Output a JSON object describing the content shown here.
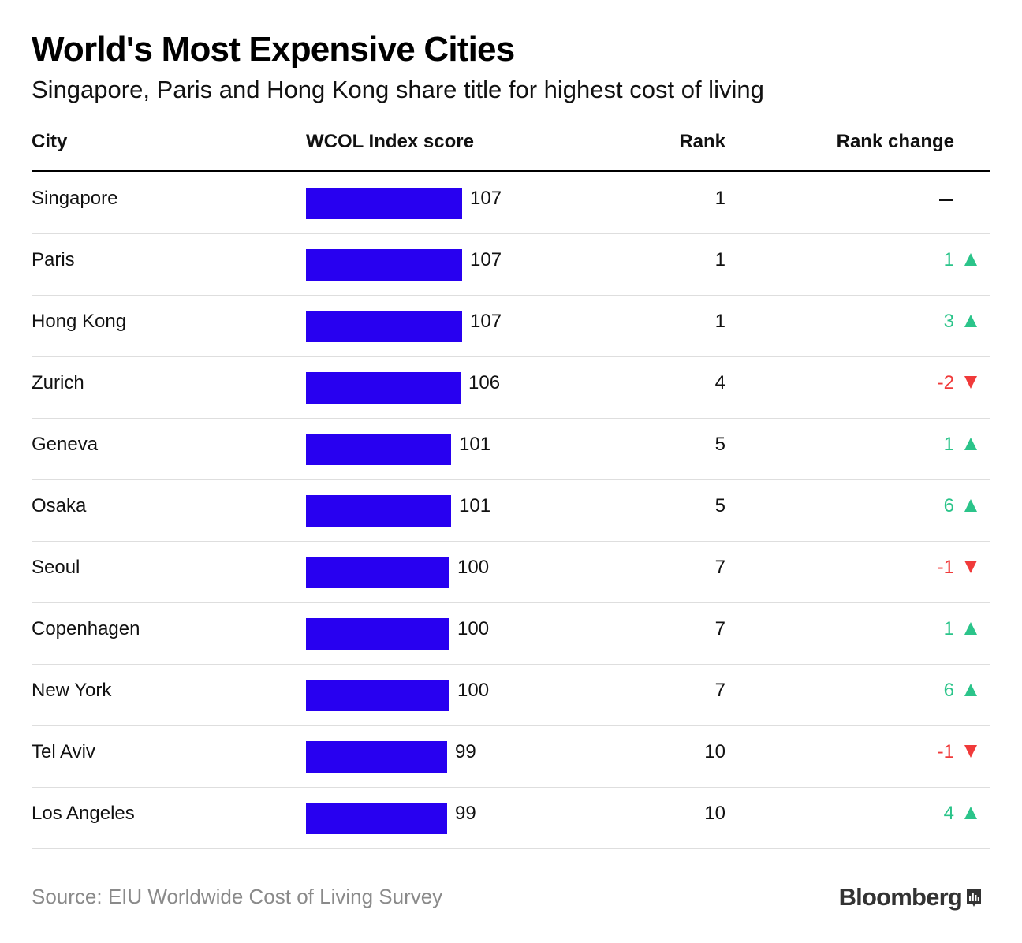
{
  "title": "World's Most Expensive Cities",
  "subtitle": "Singapore, Paris and Hong Kong share title for highest cost of living",
  "source": "Source: EIU Worldwide Cost of Living Survey",
  "brand": "Bloomberg",
  "colors": {
    "bar": "#2800f0",
    "up": "#2bc48a",
    "down": "#f03a3a",
    "text": "#111111"
  },
  "chart_data": {
    "type": "table",
    "title": "World's Most Expensive Cities",
    "columns": [
      "City",
      "WCOL Index score",
      "Rank",
      "Rank change"
    ],
    "rows": [
      {
        "city": "Singapore",
        "score": 107,
        "rank": "1",
        "change": null
      },
      {
        "city": "Paris",
        "score": 107,
        "rank": "1",
        "change": 1
      },
      {
        "city": "Hong Kong",
        "score": 107,
        "rank": "1",
        "change": 3
      },
      {
        "city": "Zurich",
        "score": 106,
        "rank": "4",
        "change": -2
      },
      {
        "city": "Geneva",
        "score": 101,
        "rank": "5",
        "change": 1
      },
      {
        "city": "Osaka",
        "score": 101,
        "rank": "5",
        "change": 6
      },
      {
        "city": "Seoul",
        "score": 100,
        "rank": "7",
        "change": -1
      },
      {
        "city": "Copenhagen",
        "score": 100,
        "rank": "7",
        "change": 1
      },
      {
        "city": "New York",
        "score": 100,
        "rank": "7",
        "change": 6
      },
      {
        "city": "Tel Aviv",
        "score": 99,
        "rank": "10",
        "change": -1
      },
      {
        "city": "Los Angeles",
        "score": 99,
        "rank": "10",
        "change": 4
      }
    ],
    "score_axis_max": 107
  }
}
